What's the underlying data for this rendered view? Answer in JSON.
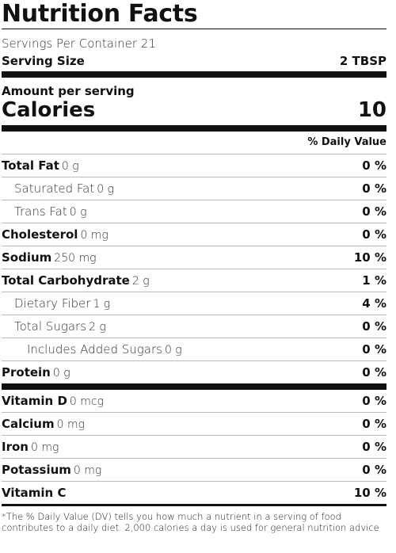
{
  "title": "Nutrition Facts",
  "servings_per_container": "Servings Per Container 21",
  "serving_size": {
    "label": "Serving Size",
    "value": "2 TBSP"
  },
  "amount_per_serving": "Amount per serving",
  "calories": {
    "label": "Calories",
    "value": "10"
  },
  "dv_header": "% Daily Value",
  "nutrients": [
    {
      "name": "Total Fat",
      "qty": "0 g",
      "pct": "0 %"
    },
    {
      "name": "Saturated Fat",
      "qty": "0 g",
      "pct": "0 %"
    },
    {
      "name": "Trans Fat",
      "qty": "0 g",
      "pct": "0 %"
    },
    {
      "name": "Cholesterol",
      "qty": "0 mg",
      "pct": "0 %"
    },
    {
      "name": "Sodium",
      "qty": "250 mg",
      "pct": "10 %"
    },
    {
      "name": "Total Carbohydrate",
      "qty": "2 g",
      "pct": "1 %"
    },
    {
      "name": "Dietary Fiber",
      "qty": "1 g",
      "pct": "4 %"
    },
    {
      "name": "Total Sugars",
      "qty": "2 g",
      "pct": "0 %"
    },
    {
      "name": "Includes Added Sugars",
      "qty": "0 g",
      "pct": "0 %"
    },
    {
      "name": "Protein",
      "qty": "0 g",
      "pct": "0 %"
    }
  ],
  "vitamins": [
    {
      "name": "Vitamin D",
      "qty": "0 mcg",
      "pct": "0 %"
    },
    {
      "name": "Calcium",
      "qty": "0 mg",
      "pct": "0 %"
    },
    {
      "name": "Iron",
      "qty": "0 mg",
      "pct": "0 %"
    },
    {
      "name": "Potassium",
      "qty": "0 mg",
      "pct": "0 %"
    },
    {
      "name": "Vitamin C",
      "qty": "",
      "pct": "10 %"
    }
  ],
  "footnote": "*The % Daily Value (DV) tells you how much a nutrient in a serving of food contributes to a daily diet. 2,000 calories a day is used for general nutrition advice"
}
